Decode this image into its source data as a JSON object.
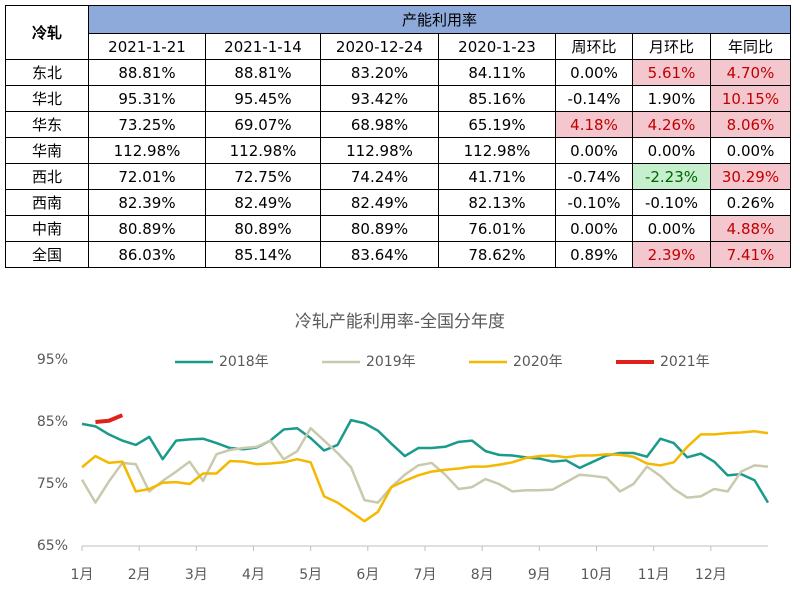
{
  "table": {
    "corner": "冷轧",
    "group": "产能利用率",
    "columns": [
      "2021-1-21",
      "2021-1-14",
      "2020-12-24",
      "2020-1-23",
      "周环比",
      "月环比",
      "年同比"
    ],
    "rows": [
      [
        "东北",
        "88.81%",
        "88.81%",
        "83.20%",
        "84.11%",
        "0.00%",
        "5.61%",
        "4.70%"
      ],
      [
        "华北",
        "95.31%",
        "95.45%",
        "93.42%",
        "85.16%",
        "-0.14%",
        "1.90%",
        "10.15%"
      ],
      [
        "华东",
        "73.25%",
        "69.07%",
        "68.98%",
        "65.19%",
        "4.18%",
        "4.26%",
        "8.06%"
      ],
      [
        "华南",
        "112.98%",
        "112.98%",
        "112.98%",
        "112.98%",
        "0.00%",
        "0.00%",
        "0.00%"
      ],
      [
        "西北",
        "72.01%",
        "72.75%",
        "74.24%",
        "41.71%",
        "-0.74%",
        "-2.23%",
        "30.29%"
      ],
      [
        "西南",
        "82.39%",
        "82.49%",
        "82.49%",
        "82.13%",
        "-0.10%",
        "-0.10%",
        "0.26%"
      ],
      [
        "中南",
        "80.89%",
        "80.89%",
        "80.89%",
        "76.01%",
        "0.00%",
        "0.00%",
        "4.88%"
      ],
      [
        "全国",
        "86.03%",
        "85.14%",
        "83.64%",
        "78.62%",
        "0.89%",
        "2.39%",
        "7.41%"
      ]
    ],
    "header_fill": "#8eaadb",
    "highlights": [
      {
        "row": 0,
        "col": 6,
        "fill": "#f4c7ce",
        "color": "#c00000"
      },
      {
        "row": 0,
        "col": 7,
        "fill": "#f4c7ce",
        "color": "#c00000"
      },
      {
        "row": 1,
        "col": 7,
        "fill": "#f4c7ce",
        "color": "#c00000"
      },
      {
        "row": 2,
        "col": 5,
        "fill": "#f4c7ce",
        "color": "#c00000"
      },
      {
        "row": 2,
        "col": 6,
        "fill": "#f4c7ce",
        "color": "#c00000"
      },
      {
        "row": 2,
        "col": 7,
        "fill": "#f4c7ce",
        "color": "#c00000"
      },
      {
        "row": 4,
        "col": 6,
        "fill": "#c6efce",
        "color": "#006100"
      },
      {
        "row": 4,
        "col": 7,
        "fill": "#f4c7ce",
        "color": "#c00000"
      },
      {
        "row": 6,
        "col": 7,
        "fill": "#f4c7ce",
        "color": "#c00000"
      },
      {
        "row": 7,
        "col": 6,
        "fill": "#f4c7ce",
        "color": "#c00000"
      },
      {
        "row": 7,
        "col": 7,
        "fill": "#f4c7ce",
        "color": "#c00000"
      }
    ]
  },
  "chart_data": {
    "type": "line",
    "title": "冷轧产能利用率-全国分年度",
    "x": [
      1,
      2,
      3,
      4,
      5,
      6,
      7,
      8,
      9,
      10,
      11,
      12,
      13,
      14,
      15,
      16,
      17,
      18,
      19,
      20,
      21,
      22,
      23,
      24,
      25,
      26,
      27,
      28,
      29,
      30,
      31,
      32,
      33,
      34,
      35,
      36,
      37,
      38,
      39,
      40,
      41,
      42,
      43,
      44,
      45,
      46,
      47,
      48,
      49,
      50,
      51,
      52
    ],
    "xlim": [
      1,
      52
    ],
    "xticks": [
      {
        "value": 1,
        "label": "1月"
      },
      {
        "value": 5.25,
        "label": "2月"
      },
      {
        "value": 9.5,
        "label": "3月"
      },
      {
        "value": 13.75,
        "label": "4月"
      },
      {
        "value": 18,
        "label": "5月"
      },
      {
        "value": 22.25,
        "label": "6月"
      },
      {
        "value": 26.5,
        "label": "7月"
      },
      {
        "value": 30.75,
        "label": "8月"
      },
      {
        "value": 35,
        "label": "9月"
      },
      {
        "value": 39.25,
        "label": "10月"
      },
      {
        "value": 43.5,
        "label": "11月"
      },
      {
        "value": 47.75,
        "label": "12月"
      }
    ],
    "ylim": [
      65,
      95
    ],
    "yticks": [
      {
        "value": 65,
        "label": "65%"
      },
      {
        "value": 75,
        "label": "75%"
      },
      {
        "value": 85,
        "label": "85%"
      },
      {
        "value": 95,
        "label": "95%"
      }
    ],
    "grid": false,
    "legend": "top",
    "series": [
      {
        "name": "2018年",
        "color": "#1a9a8a",
        "values": [
          84.7,
          84.3,
          83.0,
          82.0,
          81.3,
          82.6,
          79.0,
          82.0,
          82.2,
          82.3,
          81.6,
          80.8,
          80.6,
          80.9,
          82.0,
          83.8,
          84.0,
          82.4,
          80.4,
          81.3,
          85.3,
          84.8,
          83.6,
          81.5,
          79.5,
          80.8,
          80.8,
          81.0,
          81.8,
          82.0,
          80.3,
          79.7,
          79.6,
          79.3,
          79.1,
          78.6,
          78.8,
          77.6,
          78.6,
          79.6,
          80.0,
          80.0,
          79.4,
          82.3,
          81.6,
          79.3,
          79.9,
          78.6,
          76.4,
          76.6,
          75.6,
          72.0
        ]
      },
      {
        "name": "2019年",
        "color": "#c9c9ae",
        "values": [
          75.7,
          72.0,
          75.4,
          78.4,
          78.2,
          73.8,
          75.5,
          77.0,
          78.6,
          75.5,
          79.8,
          80.5,
          80.8,
          81.0,
          82.0,
          79.0,
          80.3,
          84.0,
          82.0,
          80.0,
          77.7,
          72.4,
          72.0,
          74.5,
          76.5,
          78.0,
          78.4,
          76.5,
          74.2,
          74.5,
          75.8,
          75.0,
          73.8,
          74.0,
          74.0,
          74.1,
          75.3,
          76.5,
          76.3,
          76.0,
          73.8,
          75.0,
          77.8,
          76.3,
          74.2,
          72.8,
          73.0,
          74.2,
          73.8,
          77.0,
          78.0,
          77.8
        ]
      },
      {
        "name": "2020年",
        "color": "#f5b800",
        "values": [
          77.7,
          79.5,
          78.4,
          78.6,
          73.8,
          74.2,
          75.2,
          75.3,
          75.0,
          76.7,
          76.7,
          78.7,
          78.6,
          78.2,
          78.3,
          78.5,
          79.0,
          78.5,
          73.0,
          72.0,
          70.5,
          69.0,
          70.5,
          74.5,
          75.5,
          76.4,
          77.0,
          77.3,
          77.5,
          77.8,
          77.8,
          78.1,
          78.5,
          79.2,
          79.5,
          79.6,
          79.3,
          79.6,
          79.6,
          79.8,
          79.7,
          79.4,
          78.3,
          78.0,
          78.5,
          81.0,
          83.0,
          83.0,
          83.2,
          83.3,
          83.5,
          83.2
        ]
      },
      {
        "name": "2021年",
        "color": "#e0201b",
        "values": [
          null,
          85.0,
          85.2,
          86.1,
          null,
          null,
          null,
          null,
          null,
          null,
          null,
          null,
          null,
          null,
          null,
          null,
          null,
          null,
          null,
          null,
          null,
          null,
          null,
          null,
          null,
          null,
          null,
          null,
          null,
          null,
          null,
          null,
          null,
          null,
          null,
          null,
          null,
          null,
          null,
          null,
          null,
          null,
          null,
          null,
          null,
          null,
          null,
          null,
          null,
          null,
          null,
          null
        ]
      }
    ]
  }
}
